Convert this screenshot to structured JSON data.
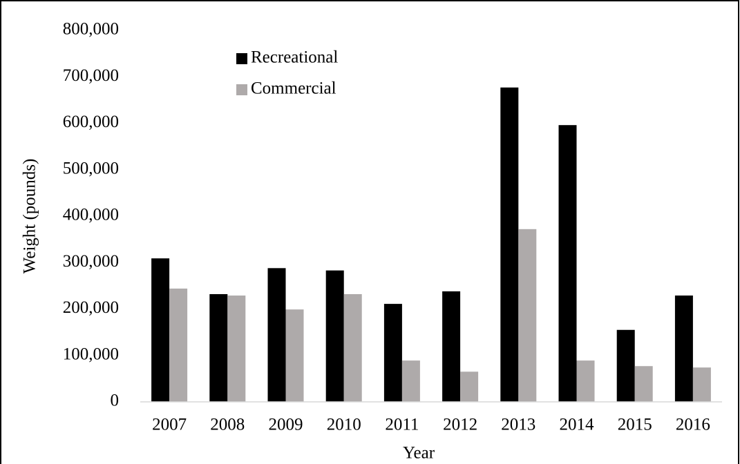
{
  "chart_data": {
    "type": "bar",
    "x_label": "Year",
    "y_label": "Weight  (pounds)",
    "categories": [
      "2007",
      "2008",
      "2009",
      "2010",
      "2011",
      "2012",
      "2013",
      "2014",
      "2015",
      "2016"
    ],
    "series": [
      {
        "name": "Recreational",
        "color": "#000000",
        "values": [
          309000,
          232000,
          288000,
          283000,
          211000,
          238000,
          677000,
          596000,
          155000,
          229000
        ]
      },
      {
        "name": "Commercial",
        "color": "#aeaaaa",
        "values": [
          244000,
          229000,
          199000,
          232000,
          89000,
          65000,
          372000,
          89000,
          77000,
          74000
        ]
      }
    ],
    "ylim": [
      0,
      800000
    ],
    "yticks": [
      0,
      {
        "value": 100000,
        "label": "100,000"
      },
      {
        "value": 200000,
        "label": "200,000"
      },
      {
        "value": 300000,
        "label": "300,000"
      },
      {
        "value": 400000,
        "label": "400,000"
      },
      {
        "value": 500000,
        "label": "500,000"
      },
      {
        "value": 600000,
        "label": "600,000"
      },
      {
        "value": 700000,
        "label": "700,000"
      },
      {
        "value": 800000,
        "label": "800,000"
      }
    ],
    "grid": false,
    "legend": "top-left"
  }
}
